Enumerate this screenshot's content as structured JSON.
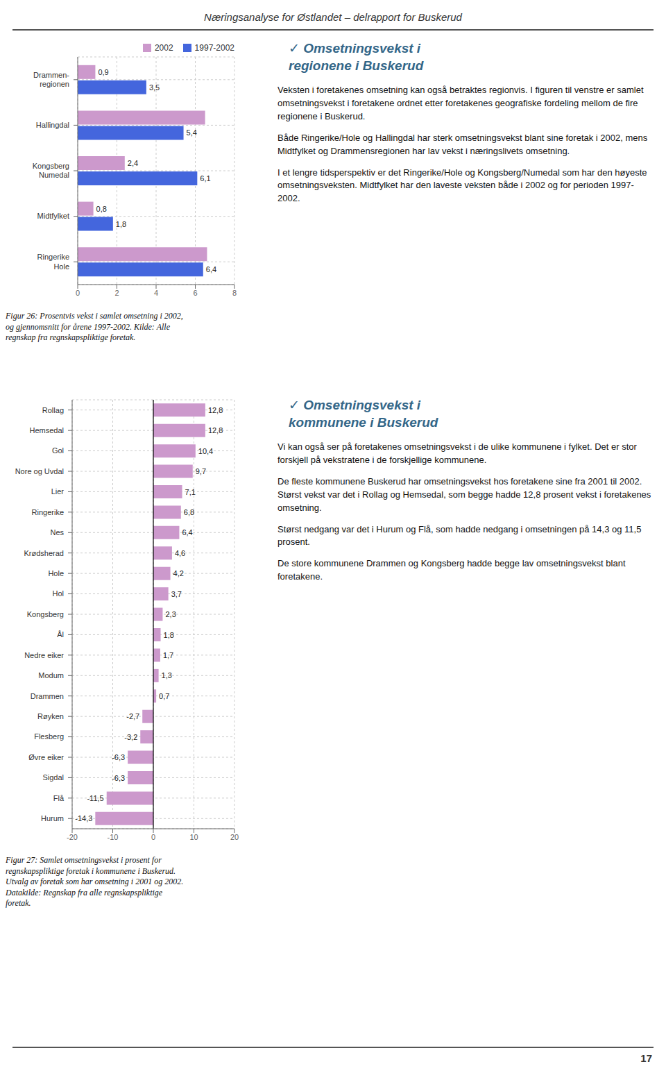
{
  "title": "Næringsanalyse for Østlandet – delrapport for Buskerud",
  "chart_data": [
    {
      "type": "bar",
      "orientation": "horizontal",
      "categories": [
        "Ringerike\nHole",
        "Midtfylket",
        "Kongsberg\nNumedal",
        "Hallingdal",
        "Drammen-\nregionen"
      ],
      "series": [
        {
          "name": "2002",
          "color": "#cc99cc",
          "values": [
            6.6,
            0.8,
            2.4,
            6.5,
            0.9
          ],
          "value_labels": [
            null,
            "0,8",
            "2,4",
            null,
            "0,9"
          ]
        },
        {
          "name": "1997-2002",
          "color": "#4466dd",
          "values": [
            6.4,
            1.8,
            6.1,
            5.4,
            3.5
          ],
          "value_labels": [
            "6,4",
            "1,8",
            "6,1",
            "5,4",
            "3,5"
          ]
        }
      ],
      "xlim": [
        0,
        8
      ],
      "xticks": [
        0,
        2,
        4,
        6,
        8
      ],
      "grid": true,
      "data_labels": true,
      "legend": "upper right",
      "annotations": [
        "Figur 26:  Prosentvis vekst i samlet omsetning i 2002,\nog gjennomsnitt for årene 1997-2002.  Kilde:  Alle\nregnskap fra regnskapspliktige foretak."
      ]
    },
    {
      "type": "bar",
      "orientation": "horizontal",
      "categories": [
        "Rollag",
        "Hemsedal",
        "Gol",
        "Nore og Uvdal",
        "Lier",
        "Ringerike",
        "Nes",
        "Krødsherad",
        "Hole",
        "Hol",
        "Kongsberg",
        "Ål",
        "Nedre eiker",
        "Modum",
        "Drammen",
        "Røyken",
        "Flesberg",
        "Øvre eiker",
        "Sigdal",
        "Flå",
        "Hurum"
      ],
      "values": [
        12.8,
        12.8,
        10.4,
        9.7,
        7.1,
        6.8,
        6.4,
        4.6,
        4.2,
        3.7,
        2.3,
        1.8,
        1.7,
        1.3,
        0.7,
        -2.7,
        -3.2,
        -6.3,
        -6.3,
        -11.5,
        -14.3
      ],
      "value_labels": [
        "12,8",
        "12,8",
        "10,4",
        "9,7",
        "7,1",
        "6,8",
        "6,4",
        "4,6",
        "4,2",
        "3,7",
        "2,3",
        "1,8",
        "1,7",
        "1,3",
        "0,7",
        "-2,7",
        "-3,2",
        "-6,3",
        "-6,3",
        "-11,5",
        "-14,3"
      ],
      "color": "#cc99cc",
      "xlim": [
        -20,
        20
      ],
      "xticks": [
        -20,
        -10,
        0,
        10,
        20
      ],
      "grid": true,
      "data_labels": true,
      "annotations": [
        "Figur 27:  Samlet omsetningsvekst i prosent for\nregnskapspliktige foretak i kommunene i Buskerud.\nUtvalg av foretak som har omsetning i 2001 og 2002.\nDatakilde:  Regnskap fra alle regnskapspliktige\nforetak."
      ]
    }
  ],
  "sections": [
    {
      "title": "✓ Omsetningsvekst i\nregionene i Buskerud",
      "annotations": [
        "Veksten i foretakenes omsetning kan også betraktes regionvis.  I figuren til venstre er samlet omsetningsvekst i foretakene ordnet etter foretakenes geografiske fordeling mellom de fire regionene i Buskerud.",
        "Både Ringerike/Hole og Hallingdal har sterk omsetningsvekst blant sine foretak i 2002, mens Midtfylket og Drammensregionen har lav vekst i næringslivets omsetning.",
        "I et lengre tidsperspektiv er det Ringerike/Hole og Kongsberg/Numedal som har den høyeste omsetningsveksten.  Midtfylket har den laveste veksten både i 2002 og for perioden 1997-2002."
      ]
    },
    {
      "title": "✓ Omsetningsvekst i\nkommunene i Buskerud",
      "annotations": [
        "Vi kan også ser på foretakenes omsetningsvekst i de ulike kommunene i fylket.  Det er stor forskjell på vekstratene i de forskjellige kommunene.",
        "De fleste kommunene Buskerud har omsetningsvekst hos foretakene sine fra 2001 til 2002.  Størst vekst var det i Rollag og Hemsedal, som begge hadde 12,8 prosent vekst i foretakenes omsetning.",
        "Størst nedgang var det i Hurum og Flå, som hadde nedgang i omsetningen på 14,3 og 11,5 prosent.",
        "De store kommunene Drammen og Kongsberg hadde begge lav omsetningsvekst blant foretakene."
      ]
    }
  ],
  "annotations": [
    "17"
  ]
}
